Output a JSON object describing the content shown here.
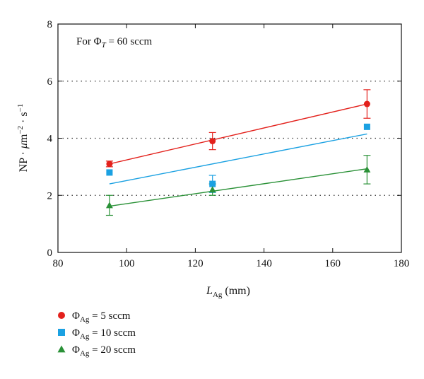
{
  "chart_data": {
    "type": "scatter",
    "annotation": "For Φ_T = 60 sccm",
    "xlabel": "L_Ag (mm)",
    "ylabel": "NP · μm^-2 · s^-1",
    "xlim": [
      80,
      180
    ],
    "ylim": [
      0,
      8
    ],
    "xticks": [
      80,
      100,
      120,
      140,
      160,
      180
    ],
    "yticks": [
      0,
      2,
      4,
      6,
      8
    ],
    "dotted_gridlines_y": [
      2,
      4,
      6
    ],
    "legend_position": "bottom-left, below plot",
    "series": [
      {
        "name": "Φ_Ag = 5 sccm",
        "name_main": "Φ",
        "name_sub": "Ag",
        "name_rest": " = 5 sccm",
        "color": "#e3211c",
        "marker": "circle",
        "x": [
          95,
          125,
          170
        ],
        "y": [
          3.1,
          3.9,
          5.2
        ],
        "err": [
          0.1,
          0.3,
          0.5
        ],
        "fit": [
          [
            95,
            3.1
          ],
          [
            170,
            5.2
          ]
        ]
      },
      {
        "name": "Φ_Ag = 10 sccm",
        "name_main": "Φ",
        "name_sub": "Ag",
        "name_rest": " = 10 sccm",
        "color": "#1ba1e2",
        "marker": "square",
        "x": [
          95,
          125,
          170
        ],
        "y": [
          2.8,
          2.4,
          4.4
        ],
        "err": [
          0,
          0.3,
          0
        ],
        "fit": [
          [
            95,
            2.4
          ],
          [
            170,
            4.15
          ]
        ]
      },
      {
        "name": "Φ_Ag = 20 sccm",
        "name_main": "Φ",
        "name_sub": "Ag",
        "name_rest": " = 20 sccm",
        "color": "#2a9137",
        "marker": "triangle",
        "x": [
          95,
          125,
          170
        ],
        "y": [
          1.65,
          2.2,
          2.9
        ],
        "err": [
          0.35,
          0.2,
          0.5
        ],
        "fit": [
          [
            95,
            1.62
          ],
          [
            170,
            2.93
          ]
        ]
      }
    ]
  }
}
